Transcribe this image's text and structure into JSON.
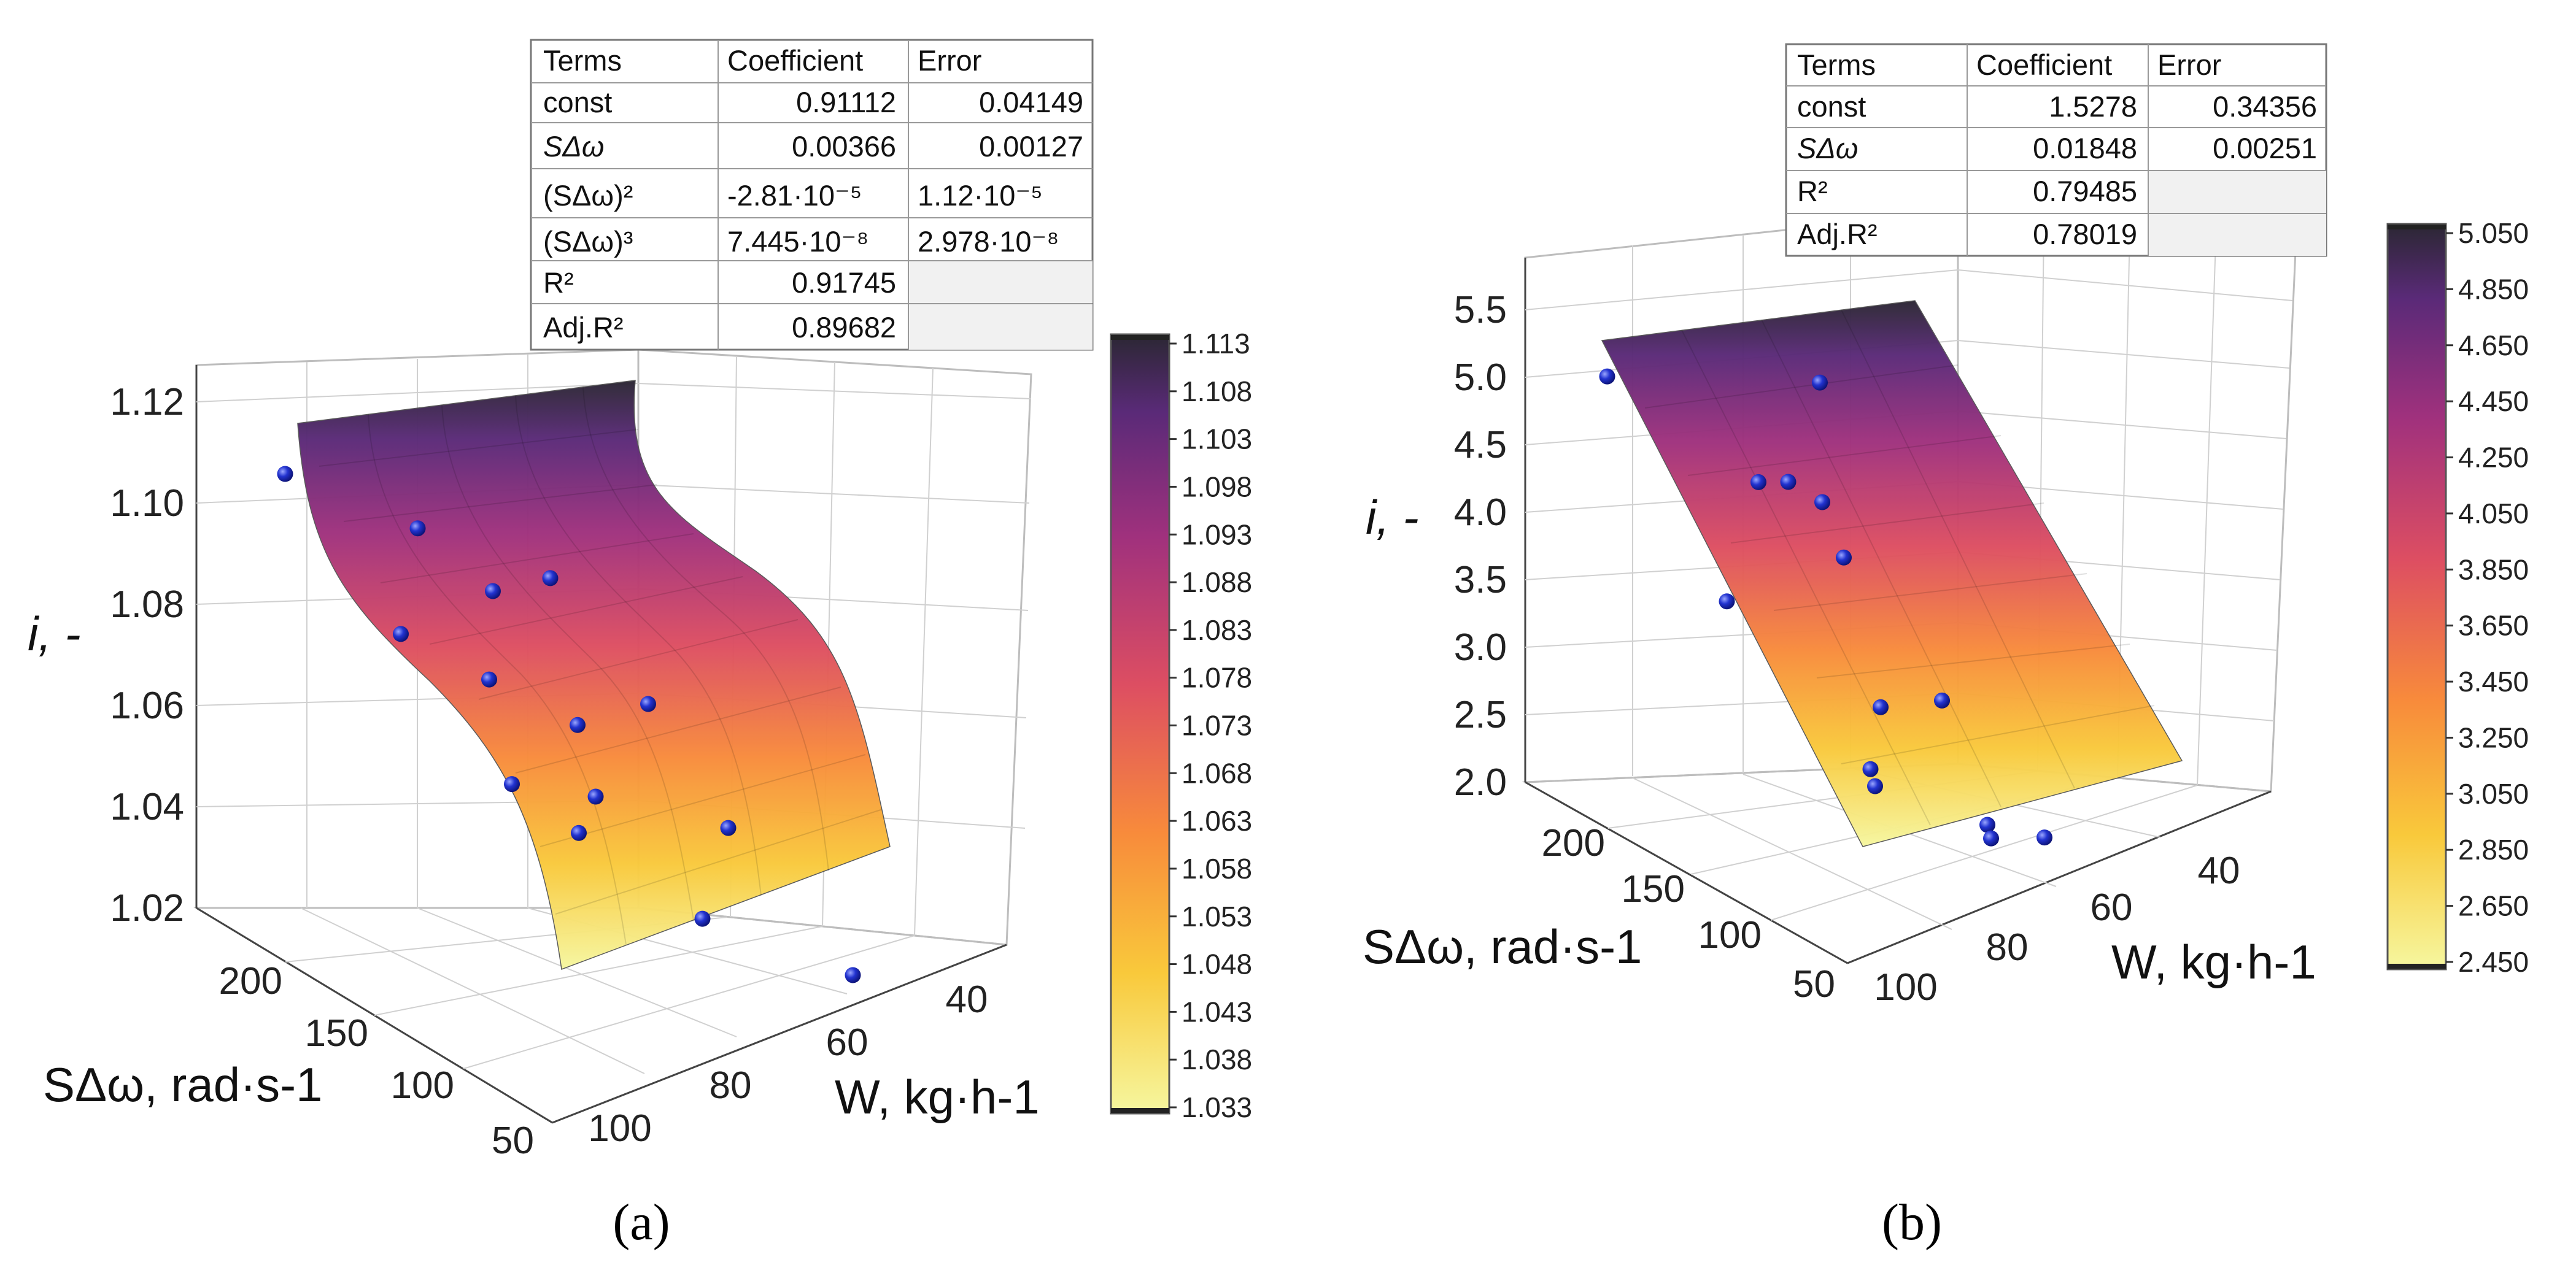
{
  "figure": {
    "panels": [
      {
        "id": "a",
        "caption": "(a)",
        "fit_table": {
          "headers": [
            "Terms",
            "Coefficient",
            "Error"
          ],
          "rows": [
            [
              "const",
              "0.91112",
              "0.04149"
            ],
            [
              "SΔω",
              "0.00366",
              "0.00127"
            ],
            [
              "(SΔω)²",
              "-2.81·10⁻⁵",
              "1.12·10⁻⁵"
            ],
            [
              "(SΔω)³",
              "7.445·10⁻⁸",
              "2.978·10⁻⁸"
            ],
            [
              "R²",
              "0.91745",
              ""
            ],
            [
              "Adj.R²",
              "0.89682",
              ""
            ]
          ]
        }
      },
      {
        "id": "b",
        "caption": "(b)",
        "fit_table": {
          "headers": [
            "Terms",
            "Coefficient",
            "Error"
          ],
          "rows": [
            [
              "const",
              "1.5278",
              "0.34356"
            ],
            [
              "SΔω",
              "0.01848",
              "0.00251"
            ],
            [
              "R²",
              "0.79485",
              ""
            ],
            [
              "Adj.R²",
              "0.78019",
              ""
            ]
          ]
        }
      }
    ]
  },
  "chart_data": [
    {
      "type": "surface3d",
      "panel": "a",
      "title": "",
      "zlabel": "i, -",
      "xlabel": "SΔω, rad·s-1",
      "ylabel": "W, kg·h-1",
      "x_ticks": [
        "50",
        "100",
        "150",
        "200"
      ],
      "y_ticks": [
        "40",
        "60",
        "80",
        "100"
      ],
      "z_ticks": [
        "1.02",
        "1.04",
        "1.06",
        "1.08",
        "1.10",
        "1.12"
      ],
      "xlim": [
        30,
        240
      ],
      "ylim": [
        30,
        105
      ],
      "zlim": [
        1.02,
        1.125
      ],
      "surface_model": "cubic_in_SDeltaOmega",
      "surface_coefficients": [
        0.91112,
        0.00366,
        -2.81e-05,
        7.445e-08
      ],
      "colorbar": {
        "min": 1.033,
        "max": 1.113,
        "ticks": [
          "1.033",
          "1.038",
          "1.043",
          "1.048",
          "1.053",
          "1.058",
          "1.063",
          "1.068",
          "1.073",
          "1.078",
          "1.083",
          "1.088",
          "1.093",
          "1.098",
          "1.103",
          "1.108",
          "1.113"
        ]
      },
      "points": [
        {
          "x": 215,
          "y": 100,
          "z": 1.113
        },
        {
          "x": 215,
          "y": 70,
          "z": 1.115
        },
        {
          "x": 215,
          "y": 40,
          "z": 1.118
        },
        {
          "x": 210,
          "y": 85,
          "z": 1.106
        },
        {
          "x": 160,
          "y": 100,
          "z": 1.088
        },
        {
          "x": 150,
          "y": 80,
          "z": 1.078
        },
        {
          "x": 150,
          "y": 60,
          "z": 1.082
        },
        {
          "x": 150,
          "y": 40,
          "z": 1.086
        },
        {
          "x": 115,
          "y": 100,
          "z": 1.063
        },
        {
          "x": 115,
          "y": 70,
          "z": 1.061
        },
        {
          "x": 100,
          "y": 45,
          "z": 1.057
        },
        {
          "x": 45,
          "y": 100,
          "z": 1.034
        },
        {
          "x": 55,
          "y": 70,
          "z": 1.037
        },
        {
          "x": 50,
          "y": 40,
          "z": 1.047
        }
      ]
    },
    {
      "type": "surface3d",
      "panel": "b",
      "title": "",
      "zlabel": "i, -",
      "xlabel": "SΔω, rad·s-1",
      "ylabel": "W, kg·h-1",
      "x_ticks": [
        "50",
        "100",
        "150",
        "200"
      ],
      "y_ticks": [
        "40",
        "60",
        "80",
        "100"
      ],
      "z_ticks": [
        "2.0",
        "2.5",
        "3.0",
        "3.5",
        "4.0",
        "4.5",
        "5.0",
        "5.5"
      ],
      "xlim": [
        30,
        240
      ],
      "ylim": [
        30,
        105
      ],
      "zlim": [
        2.0,
        5.7
      ],
      "surface_model": "linear_in_SDeltaOmega",
      "surface_coefficients": [
        1.5278,
        0.01848
      ],
      "colorbar": {
        "min": 2.45,
        "max": 5.15,
        "ticks": [
          "2.450",
          "2.650",
          "2.850",
          "3.050",
          "3.250",
          "3.450",
          "3.650",
          "3.850",
          "4.050",
          "4.250",
          "4.450",
          "4.650",
          "4.850",
          "5.050"
        ]
      },
      "points": [
        {
          "x": 225,
          "y": 100,
          "z": 5.6
        },
        {
          "x": 225,
          "y": 45,
          "z": 5.2
        },
        {
          "x": 215,
          "y": 80,
          "z": 4.7
        },
        {
          "x": 210,
          "y": 100,
          "z": 4.3
        },
        {
          "x": 175,
          "y": 80,
          "z": 4.6
        },
        {
          "x": 160,
          "y": 65,
          "z": 4.65
        },
        {
          "x": 120,
          "y": 100,
          "z": 2.4
        },
        {
          "x": 150,
          "y": 45,
          "z": 3.6
        },
        {
          "x": 100,
          "y": 80,
          "z": 3.2
        },
        {
          "x": 90,
          "y": 60,
          "z": 3.0
        },
        {
          "x": 60,
          "y": 90,
          "z": 2.3
        },
        {
          "x": 45,
          "y": 70,
          "z": 2.15
        },
        {
          "x": 60,
          "y": 45,
          "z": 2.45
        },
        {
          "x": 45,
          "y": 40,
          "z": 2.3
        }
      ]
    }
  ]
}
